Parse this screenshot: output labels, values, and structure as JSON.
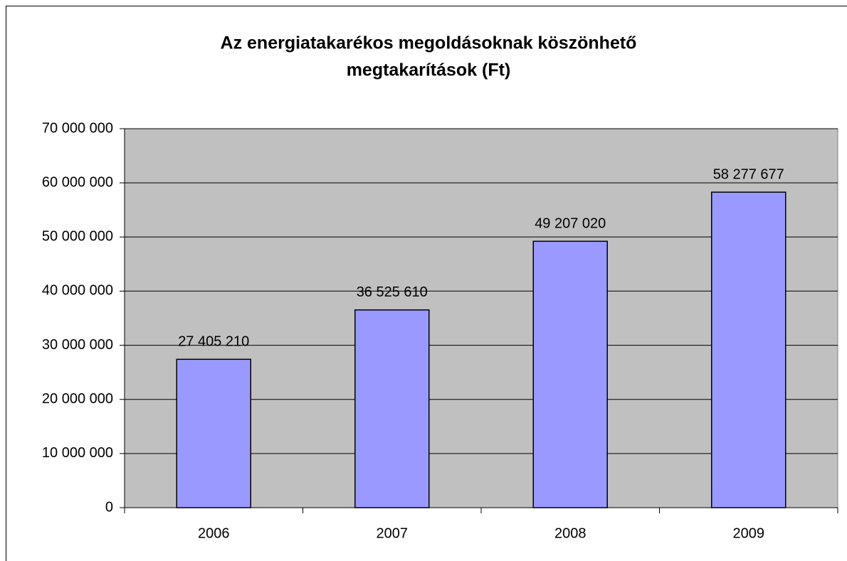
{
  "chart_data": {
    "type": "bar",
    "title": [
      "Az energiatakarékos megoldásoknak köszönhető",
      "megtakarítások (Ft)"
    ],
    "categories": [
      "2006",
      "2007",
      "2008",
      "2009"
    ],
    "values": [
      27405210,
      36525610,
      49207020,
      58277677
    ],
    "value_labels": [
      "27 405 210",
      "36 525 610",
      "49 207 020",
      "58 277 677"
    ],
    "color": "#9999ff",
    "ylim": [
      0,
      70000000
    ],
    "yticks": [
      0,
      {
        "value": 10000000,
        "label": "10 000 000"
      },
      {
        "value": 20000000,
        "label": "20 000 000"
      },
      {
        "value": 30000000,
        "label": "30 000 000"
      },
      {
        "value": 40000000,
        "label": "40 000 000"
      },
      {
        "value": 50000000,
        "label": "50 000 000"
      },
      {
        "value": 60000000,
        "label": "60 000 000"
      },
      {
        "value": 70000000,
        "label": "70 000 000"
      }
    ],
    "grid": true
  }
}
